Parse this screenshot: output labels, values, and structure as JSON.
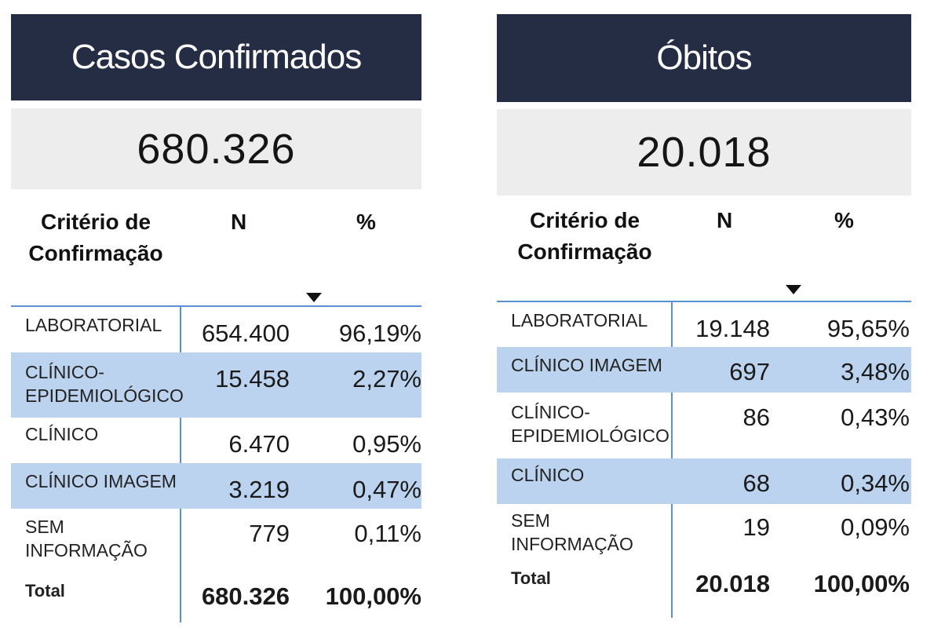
{
  "casos": {
    "title": "Casos Confirmados",
    "value": "680.326",
    "headers": {
      "criterio": "Critério de Confirmação",
      "n": "N",
      "pct": "%"
    },
    "rows": [
      {
        "label": "LABORATORIAL",
        "n": "654.400",
        "pct": "96,19%"
      },
      {
        "label": "CLÍNICO-EPIDEMIOLÓGICO",
        "n": "15.458",
        "pct": "2,27%"
      },
      {
        "label": "CLÍNICO",
        "n": "6.470",
        "pct": "0,95%"
      },
      {
        "label": "CLÍNICO IMAGEM",
        "n": "3.219",
        "pct": "0,47%"
      },
      {
        "label": "SEM INFORMAÇÃO",
        "n": "779",
        "pct": "0,11%"
      }
    ],
    "total": {
      "label": "Total",
      "n": "680.326",
      "pct": "100,00%"
    }
  },
  "obitos": {
    "title": "Óbitos",
    "value": "20.018",
    "headers": {
      "criterio": "Critério de Confirmação",
      "n": "N",
      "pct": "%"
    },
    "rows": [
      {
        "label": "LABORATORIAL",
        "n": "19.148",
        "pct": "95,65%"
      },
      {
        "label": "CLÍNICO IMAGEM",
        "n": "697",
        "pct": "3,48%"
      },
      {
        "label": "CLÍNICO-EPIDEMIOLÓGICO",
        "n": "86",
        "pct": "0,43%"
      },
      {
        "label": "CLÍNICO",
        "n": "68",
        "pct": "0,34%"
      },
      {
        "label": "SEM INFORMAÇÃO",
        "n": "19",
        "pct": "0,09%"
      }
    ],
    "total": {
      "label": "Total",
      "n": "20.018",
      "pct": "100,00%"
    }
  },
  "sort_icon": "sort-descending-icon",
  "colors": {
    "title_bg": "#252d45",
    "kpi_bg": "#ededed",
    "row_highlight": "#bcd3f0",
    "rule": "#5b8fd6"
  }
}
